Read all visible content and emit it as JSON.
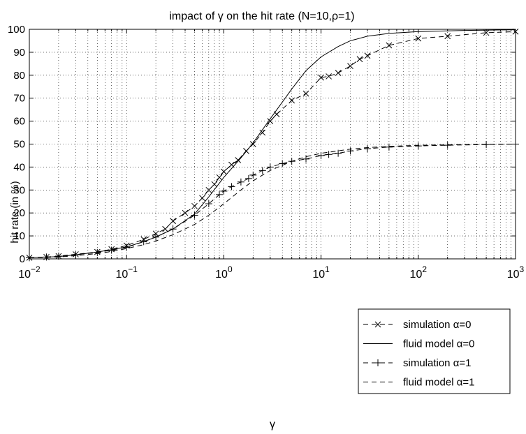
{
  "chart_data": {
    "type": "line",
    "title": "impact of γ on the hit rate (N=10,ρ=1)",
    "xlabel": "γ",
    "ylabel": "hit rate (in %)",
    "xscale": "log",
    "xlim": [
      0.01,
      1000
    ],
    "ylim": [
      0,
      100
    ],
    "grid": "on (major and minor, dotted)",
    "legend_position": "bottom-right",
    "x_tick_labels": [
      {
        "base": "10",
        "exp": "−2"
      },
      {
        "base": "10",
        "exp": "−1"
      },
      {
        "base": "10",
        "exp": "0"
      },
      {
        "base": "10",
        "exp": "1"
      },
      {
        "base": "10",
        "exp": "2"
      },
      {
        "base": "10",
        "exp": "3"
      }
    ],
    "y_tick_labels": [
      "0",
      "10",
      "20",
      "30",
      "40",
      "50",
      "60",
      "70",
      "80",
      "90",
      "100"
    ],
    "series": [
      {
        "name": "simulation α=0",
        "line": "dashed",
        "marker": "x",
        "color": "#000000",
        "x": [
          0.01,
          0.015,
          0.02,
          0.03,
          0.05,
          0.07,
          0.1,
          0.15,
          0.2,
          0.25,
          0.3,
          0.4,
          0.5,
          0.6,
          0.7,
          0.8,
          0.9,
          1.0,
          1.2,
          1.4,
          1.7,
          2.0,
          2.5,
          3.0,
          3.5,
          5.0,
          7.0,
          10.0,
          12.0,
          15.0,
          20.0,
          25.0,
          30.0,
          50.0,
          100.0,
          200.0,
          500.0,
          1000.0
        ],
        "y": [
          0.5,
          0.8,
          1.2,
          2.0,
          3.0,
          4.2,
          5.8,
          8.5,
          11.0,
          13.0,
          16.5,
          20.0,
          23.0,
          26.5,
          30.0,
          32.5,
          35.5,
          38.0,
          41.0,
          43.0,
          47.0,
          50.0,
          55.0,
          60.0,
          63.0,
          69.0,
          72.0,
          79.0,
          79.5,
          81.0,
          84.0,
          87.0,
          88.5,
          93.0,
          96.0,
          97.0,
          98.5,
          99.0
        ]
      },
      {
        "name": "fluid model α=0",
        "line": "solid",
        "marker": "none",
        "color": "#000000",
        "x": [
          0.01,
          0.02,
          0.03,
          0.05,
          0.07,
          0.1,
          0.15,
          0.2,
          0.3,
          0.5,
          0.7,
          1.0,
          1.5,
          2.0,
          3.0,
          5.0,
          7.0,
          10.0,
          15.0,
          20.0,
          30.0,
          50.0,
          100.0,
          300.0,
          1000.0
        ],
        "y": [
          0.5,
          1.0,
          1.8,
          3.0,
          4.0,
          5.2,
          7.5,
          9.5,
          13.0,
          19.5,
          27.0,
          35.5,
          44.0,
          50.5,
          61.0,
          74.0,
          82.0,
          88.0,
          92.5,
          95.0,
          97.0,
          98.2,
          99.0,
          99.5,
          99.8
        ]
      },
      {
        "name": "simulation α=1",
        "line": "dashed",
        "marker": "+",
        "color": "#000000",
        "x": [
          0.01,
          0.015,
          0.02,
          0.03,
          0.05,
          0.07,
          0.1,
          0.15,
          0.2,
          0.3,
          0.5,
          0.7,
          0.9,
          1.0,
          1.2,
          1.5,
          1.8,
          2.0,
          2.5,
          3.0,
          4.0,
          5.0,
          7.0,
          10.0,
          12.0,
          15.0,
          20.0,
          30.0,
          50.0,
          100.0,
          200.0,
          500.0,
          1000.0
        ],
        "y": [
          0.5,
          0.8,
          1.2,
          1.8,
          2.8,
          3.8,
          5.0,
          7.5,
          9.5,
          13.0,
          19.0,
          24.0,
          28.0,
          29.5,
          31.5,
          33.5,
          35.0,
          36.5,
          38.5,
          40.0,
          41.5,
          42.5,
          43.5,
          45.0,
          45.5,
          46.0,
          47.0,
          48.0,
          48.7,
          49.2,
          49.5,
          49.8,
          50.0
        ]
      },
      {
        "name": "fluid model α=1",
        "line": "dashed",
        "marker": "none",
        "color": "#000000",
        "x": [
          0.01,
          0.02,
          0.03,
          0.05,
          0.07,
          0.1,
          0.15,
          0.2,
          0.3,
          0.5,
          0.7,
          1.0,
          1.5,
          2.0,
          3.0,
          5.0,
          7.0,
          10.0,
          20.0,
          30.0,
          50.0,
          100.0,
          300.0,
          1000.0
        ],
        "y": [
          0.4,
          0.8,
          1.4,
          2.3,
          3.2,
          4.5,
          6.2,
          7.8,
          10.5,
          15.0,
          19.0,
          24.0,
          30.0,
          34.0,
          38.5,
          42.5,
          44.5,
          46.0,
          47.8,
          48.5,
          49.0,
          49.5,
          49.8,
          50.0
        ]
      }
    ]
  }
}
